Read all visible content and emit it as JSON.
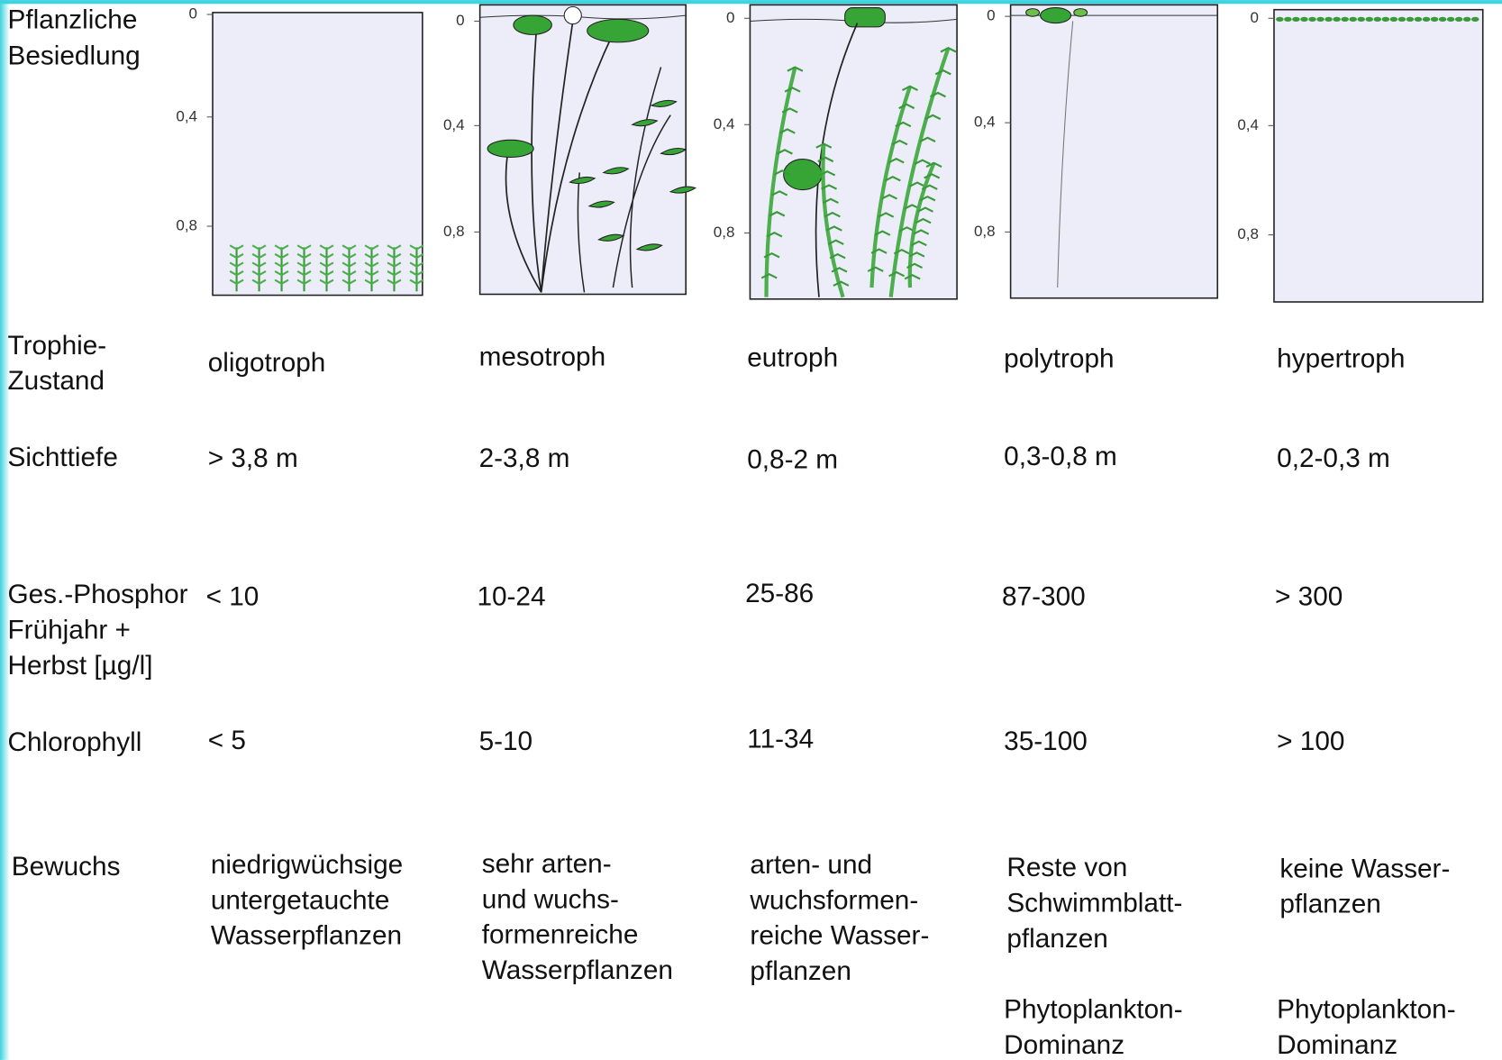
{
  "row_labels": {
    "vegetation": [
      "Pflanzliche",
      "Besiedlung"
    ],
    "trophic_state": [
      "Trophie-",
      "Zustand"
    ],
    "secchi_depth": "Sichttiefe",
    "phosphorus": [
      "Ges.-Phosphor",
      "Frühjahr +",
      "Herbst [µg/l]"
    ],
    "chlorophyll": "Chlorophyll",
    "growth": "Bewuchs"
  },
  "columns": [
    {
      "depth_labels": [
        "0",
        "0,4",
        "0,8"
      ],
      "trophic_state": "oligotroph",
      "secchi_depth": "> 3,8 m",
      "phosphorus": "< 10",
      "chlorophyll": "< 5",
      "growth": [
        "niedrigwüchsige",
        "untergetauchte",
        "Wasserpflanzen"
      ]
    },
    {
      "depth_labels": [
        "0",
        "0,4",
        "0,8"
      ],
      "trophic_state": "mesotroph",
      "secchi_depth": "2-3,8 m",
      "phosphorus": "10-24",
      "chlorophyll": "5-10",
      "growth": [
        "sehr arten-",
        "und wuchs-",
        "formenreiche",
        "Wasserpflanzen"
      ]
    },
    {
      "depth_labels": [
        "0",
        "0,4",
        "0,8"
      ],
      "trophic_state": "eutroph",
      "secchi_depth": "0,8-2 m",
      "phosphorus": "25-86",
      "chlorophyll": "11-34",
      "growth": [
        "arten- und",
        "wuchsformen-",
        "reiche Wasser-",
        "pflanzen"
      ]
    },
    {
      "depth_labels": [
        "0",
        "0,4",
        "0,8"
      ],
      "trophic_state": "polytroph",
      "secchi_depth": "0,3-0,8 m",
      "phosphorus": "87-300",
      "chlorophyll": "35-100",
      "growth": [
        "Reste von",
        "Schwimmblatt-",
        "pflanzen"
      ],
      "note": [
        "Phytoplankton-",
        "Dominanz"
      ]
    },
    {
      "depth_labels": [
        "0",
        "0,4",
        "0,8"
      ],
      "trophic_state": "hypertroph",
      "secchi_depth": "0,2-0,3 m",
      "phosphorus": "> 300",
      "chlorophyll": "> 100",
      "growth": [
        "keine Wasser-",
        "pflanzen"
      ],
      "note": [
        "Phytoplankton-",
        "Dominanz"
      ]
    }
  ]
}
